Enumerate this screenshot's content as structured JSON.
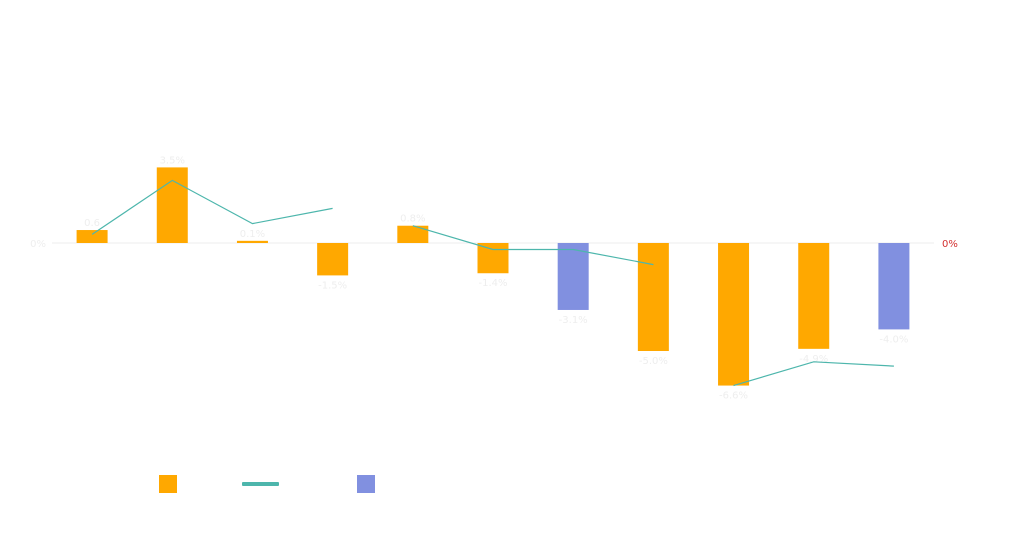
{
  "colors": {
    "bar_primary": "#FFA800",
    "bar_secondary": "#8190E0",
    "line": "#4DB6AC",
    "zero_line": "#EEEEEE",
    "right_tick": "#D32F2F",
    "label_text": "#EEEEEE"
  },
  "chart_data": {
    "type": "bar",
    "title": "",
    "xlabel": "",
    "ylabel": "",
    "ylim": [
      -11,
      9
    ],
    "categories": [
      "",
      "",
      "",
      "",
      "",
      "",
      "",
      "",
      "",
      "",
      ""
    ],
    "series": [
      {
        "name": "",
        "kind": "bar",
        "values": [
          0.6,
          3.5,
          0.1,
          -1.5,
          0.8,
          -1.4,
          -3.1,
          -5.0,
          -6.6,
          -4.9,
          -4.0
        ],
        "labels": [
          "0.6",
          "3.5%",
          "0.1%",
          "-1.5%",
          "0.8%",
          "-1.4%",
          "-3.1%",
          "-5.0%",
          "-6.6%",
          "-4.9%",
          "-4.0%"
        ],
        "colors": [
          "#FFA800",
          "#FFA800",
          "#FFA800",
          "#FFA800",
          "#FFA800",
          "#FFA800",
          "#8190E0",
          "#FFA800",
          "#FFA800",
          "#FFA800",
          "#8190E0"
        ]
      },
      {
        "name": "",
        "kind": "line",
        "segments": [
          {
            "start": 0,
            "values": [
              0.4,
              2.9,
              0.9,
              1.6
            ]
          },
          {
            "start": 4,
            "values": [
              0.8,
              -0.3,
              -0.3,
              -1.0
            ]
          },
          {
            "start": 8,
            "values": [
              -6.6,
              -5.5,
              -5.7
            ]
          }
        ]
      }
    ],
    "y_ticks_left": [
      {
        "value": 0,
        "label": "0%"
      }
    ],
    "y_ticks_right": [
      {
        "value": 0,
        "label": "0%"
      }
    ],
    "legend": {
      "placement": "bottom-left",
      "items": [
        {
          "kind": "bar",
          "color": "#FFA800",
          "label": ""
        },
        {
          "kind": "line",
          "color": "#4DB6AC",
          "label": ""
        },
        {
          "kind": "bar",
          "color": "#8190E0",
          "label": ""
        }
      ]
    }
  }
}
